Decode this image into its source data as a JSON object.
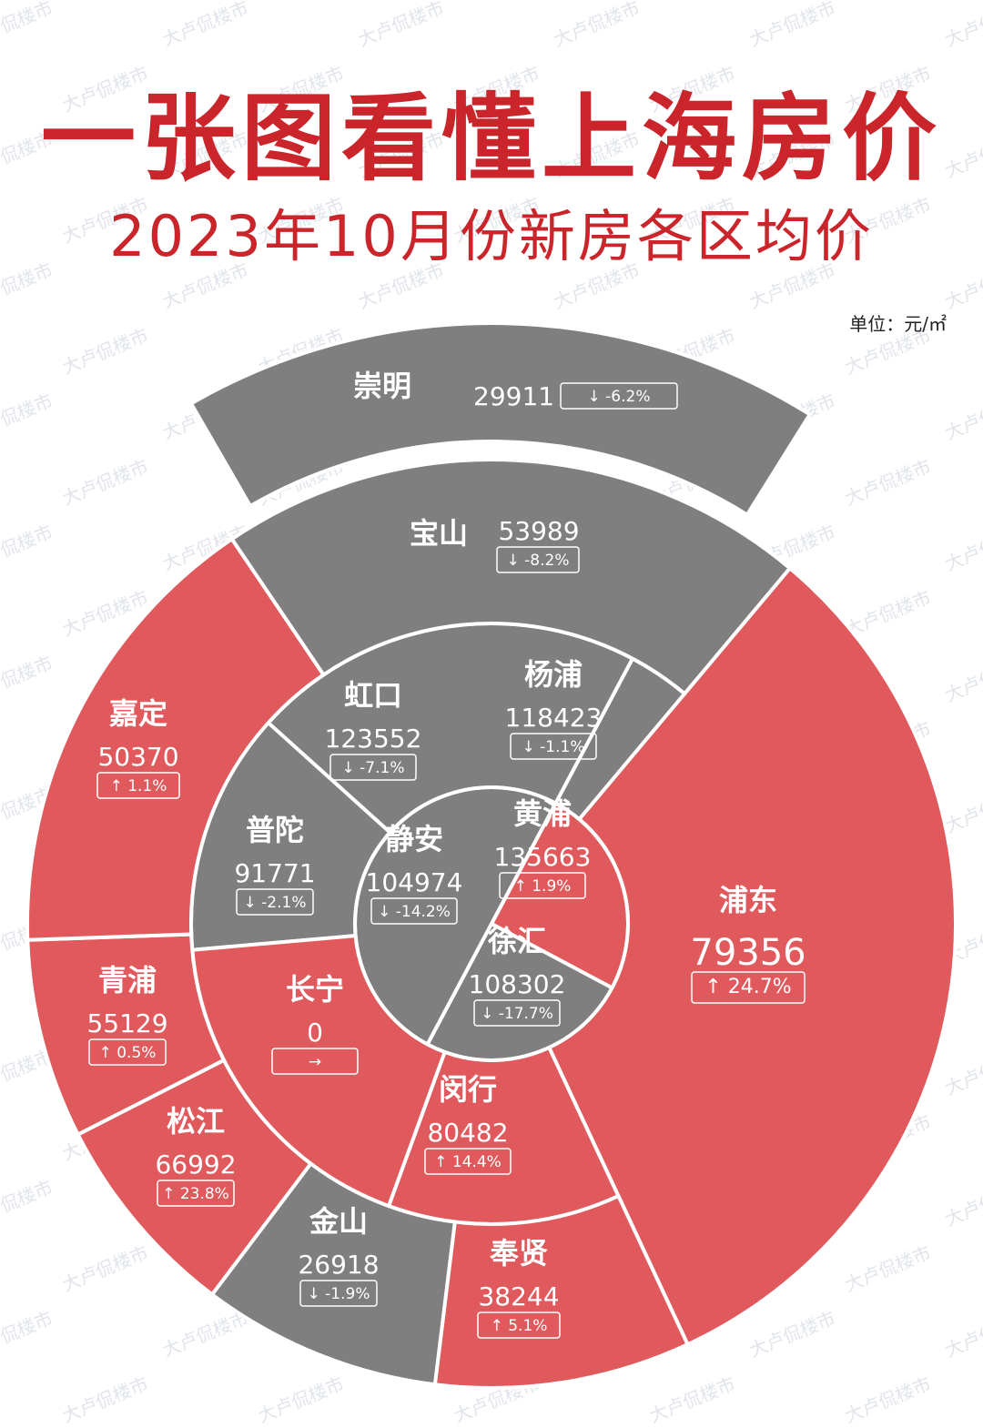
{
  "title": "一张图看懂上海房价",
  "subtitle": "2023年10月份新房各区均价",
  "unit": "单位：元/㎡",
  "watermark": "大卢侃楼市",
  "colors": {
    "red": "#e05a5d",
    "gray": "#7f7f7f",
    "title": "#c9252b",
    "stroke": "#ffffff"
  },
  "chart_data": {
    "type": "pie",
    "series": [
      {
        "name": "黄浦",
        "value": 135663,
        "change": "1.9%",
        "direction": "up"
      },
      {
        "name": "徐汇",
        "value": 108302,
        "change": "-17.7%",
        "direction": "down"
      },
      {
        "name": "静安",
        "value": 104974,
        "change": "-14.2%",
        "direction": "down"
      },
      {
        "name": "杨浦",
        "value": 118423,
        "change": "-1.1%",
        "direction": "down"
      },
      {
        "name": "虹口",
        "value": 123552,
        "change": "-7.1%",
        "direction": "down"
      },
      {
        "name": "普陀",
        "value": 91771,
        "change": "-2.1%",
        "direction": "down"
      },
      {
        "name": "长宁",
        "value": 0,
        "change": "",
        "direction": "flat"
      },
      {
        "name": "闵行",
        "value": 80482,
        "change": "14.4%",
        "direction": "up"
      },
      {
        "name": "浦东",
        "value": 79356,
        "change": "24.7%",
        "direction": "up"
      },
      {
        "name": "奉贤",
        "value": 38244,
        "change": "5.1%",
        "direction": "up"
      },
      {
        "name": "金山",
        "value": 26918,
        "change": "-1.9%",
        "direction": "down"
      },
      {
        "name": "松江",
        "value": 66992,
        "change": "23.8%",
        "direction": "up"
      },
      {
        "name": "青浦",
        "value": 55129,
        "change": "0.5%",
        "direction": "up"
      },
      {
        "name": "嘉定",
        "value": 50370,
        "change": "1.1%",
        "direction": "up"
      },
      {
        "name": "宝山",
        "value": 53989,
        "change": "-8.2%",
        "direction": "down"
      },
      {
        "name": "崇明",
        "value": 29911,
        "change": "-6.2%",
        "direction": "down"
      }
    ]
  }
}
